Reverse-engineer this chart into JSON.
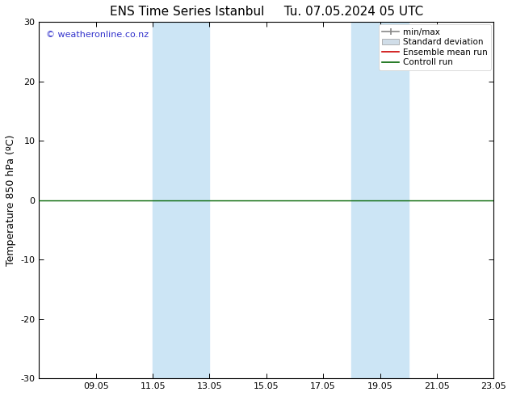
{
  "title_left": "ENS Time Series Istanbul",
  "title_right": "Tu. 07.05.2024 05 UTC",
  "ylabel": "Temperature 850 hPa (ºC)",
  "watermark": "© weatheronline.co.nz",
  "watermark_color": "#3333cc",
  "ylim": [
    -30,
    30
  ],
  "yticks": [
    -30,
    -20,
    -10,
    0,
    10,
    20,
    30
  ],
  "xtick_labels": [
    "09.05",
    "11.05",
    "13.05",
    "15.05",
    "17.05",
    "19.05",
    "21.05",
    "23.05"
  ],
  "xtick_positions": [
    2,
    4,
    6,
    8,
    10,
    12,
    14,
    16
  ],
  "total_days": 16,
  "shade_bands": [
    {
      "x_start": 4,
      "x_end": 6
    },
    {
      "x_start": 11,
      "x_end": 13
    }
  ],
  "shade_color": "#cce5f5",
  "control_run_color": "#006400",
  "ensemble_mean_color": "#cc0000",
  "minmax_color": "#888888",
  "std_dev_color": "#ccddee",
  "legend_entries": [
    "min/max",
    "Standard deviation",
    "Ensemble mean run",
    "Controll run"
  ],
  "bg_color": "#ffffff",
  "plot_bg_color": "#f5f5f5",
  "title_fontsize": 11,
  "axis_label_fontsize": 9,
  "tick_fontsize": 8,
  "legend_fontsize": 7.5
}
